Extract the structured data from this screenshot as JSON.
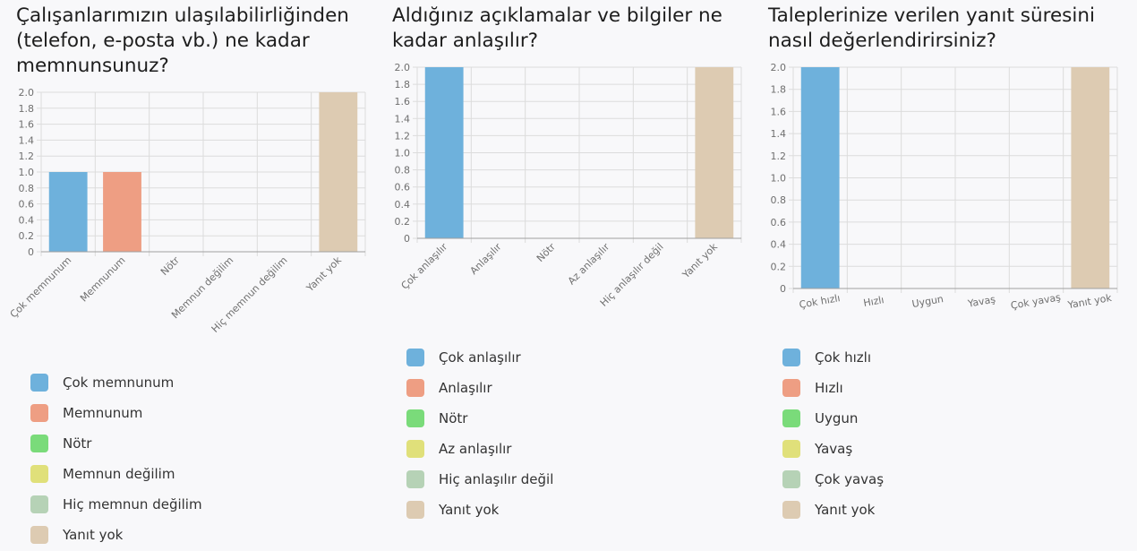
{
  "colors": {
    "grid": "#dcdcdc",
    "axis": "#a0a0a0",
    "tick_text": "#6f6f6f"
  },
  "chart_data": [
    {
      "type": "bar",
      "title": "Çalışanlarımızın ulaşılabilirliğinden (telefon, e-posta vb.) ne kadar memnunsunuz?",
      "title_lines": [
        "Çalışanlarımızın ulaşılabilirliğinden",
        "(telefon, e-posta vb.) ne kadar",
        "memnunsunuz?"
      ],
      "categories": [
        "Çok memnunum",
        "Memnunum",
        "Nötr",
        "Memnun değilim",
        "Hiç memnun değilim",
        "Yanıt yok"
      ],
      "values": [
        1,
        1,
        0,
        0,
        0,
        2
      ],
      "colors": [
        "#6eb1dc",
        "#ee9e83",
        "#7adb7a",
        "#e0e07a",
        "#b6d2b6",
        "#ddcbb2"
      ],
      "ylim": [
        0,
        2.0
      ],
      "yticks": [
        "0",
        "0.2",
        "0.4",
        "0.6",
        "0.8",
        "1.0",
        "1.2",
        "1.4",
        "1.6",
        "1.8",
        "2.0"
      ],
      "xlabel": "",
      "ylabel": "",
      "grid": true,
      "xtick_rotation": "45deg",
      "legend": "below"
    },
    {
      "type": "bar",
      "title": "Aldığınız açıklamalar ve bilgiler ne kadar anlaşılır?",
      "title_lines": [
        "Aldığınız açıklamalar ve bilgiler ne",
        "kadar anlaşılır?"
      ],
      "categories": [
        "Çok anlaşılır",
        "Anlaşılır",
        "Nötr",
        "Az anlaşılır",
        "Hiç anlaşılır değil",
        "Yanıt yok"
      ],
      "values": [
        2,
        0,
        0,
        0,
        0,
        2
      ],
      "colors": [
        "#6eb1dc",
        "#ee9e83",
        "#7adb7a",
        "#e0e07a",
        "#b6d2b6",
        "#ddcbb2"
      ],
      "ylim": [
        0,
        2.0
      ],
      "yticks": [
        "0",
        "0.2",
        "0.4",
        "0.6",
        "0.8",
        "1.0",
        "1.2",
        "1.4",
        "1.6",
        "1.8",
        "2.0"
      ],
      "xlabel": "",
      "ylabel": "",
      "grid": true,
      "xtick_rotation": "45deg",
      "legend": "below"
    },
    {
      "type": "bar",
      "title": "Taleplerinize verilen yanıt süresini nasıl değerlendirirsiniz?",
      "title_lines": [
        "Taleplerinize verilen yanıt süresini",
        "nasıl değerlendirirsiniz?"
      ],
      "categories": [
        "Çok hızlı",
        "Hızlı",
        "Uygun",
        "Yavaş",
        "Çok yavaş",
        "Yanıt yok"
      ],
      "values": [
        2,
        0,
        0,
        0,
        0,
        2
      ],
      "colors": [
        "#6eb1dc",
        "#ee9e83",
        "#7adb7a",
        "#e0e07a",
        "#b6d2b6",
        "#ddcbb2"
      ],
      "ylim": [
        0,
        2.0
      ],
      "yticks": [
        "0",
        "0.2",
        "0.4",
        "0.6",
        "0.8",
        "1.0",
        "1.2",
        "1.4",
        "1.6",
        "1.8",
        "2.0"
      ],
      "xlabel": "",
      "ylabel": "",
      "grid": true,
      "xtick_rotation": "10deg",
      "legend": "below"
    }
  ]
}
